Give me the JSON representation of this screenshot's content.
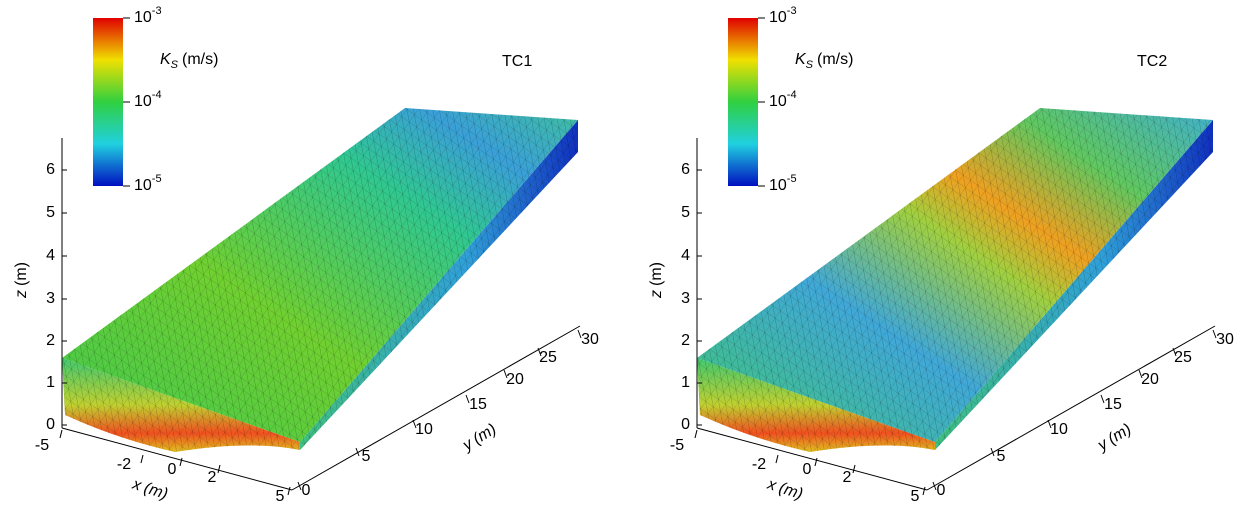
{
  "panels": [
    {
      "title": "TC1",
      "colorbar": {
        "label": {
          "symbol": "K",
          "subscript": "S",
          "unit": "(m/s)"
        },
        "ticks": [
          {
            "base": "10",
            "exponent": "-3"
          },
          {
            "base": "10",
            "exponent": "-4"
          },
          {
            "base": "10",
            "exponent": "-5"
          }
        ]
      },
      "z_axis": {
        "label": {
          "symbol": "z",
          "unit": "(m)"
        },
        "ticks": [
          "0",
          "1",
          "2",
          "3",
          "4",
          "5",
          "6"
        ]
      },
      "x_axis": {
        "label": {
          "symbol": "x",
          "unit": "(m)"
        },
        "ticks": [
          "-5",
          "-2",
          "0",
          "2",
          "5"
        ]
      },
      "y_axis": {
        "label": {
          "symbol": "y",
          "unit": "(m)"
        },
        "ticks": [
          "0",
          "5",
          "10",
          "15",
          "20",
          "25",
          "30"
        ]
      }
    },
    {
      "title": "TC2",
      "colorbar": {
        "label": {
          "symbol": "K",
          "subscript": "S",
          "unit": "(m/s)"
        },
        "ticks": [
          {
            "base": "10",
            "exponent": "-3"
          },
          {
            "base": "10",
            "exponent": "-4"
          },
          {
            "base": "10",
            "exponent": "-5"
          }
        ]
      },
      "z_axis": {
        "label": {
          "symbol": "z",
          "unit": "(m)"
        },
        "ticks": [
          "0",
          "1",
          "2",
          "3",
          "4",
          "5",
          "6"
        ]
      },
      "x_axis": {
        "label": {
          "symbol": "x",
          "unit": "(m)"
        },
        "ticks": [
          "-5",
          "-2",
          "0",
          "2",
          "5"
        ]
      },
      "y_axis": {
        "label": {
          "symbol": "y",
          "unit": "(m)"
        },
        "ticks": [
          "0",
          "5",
          "10",
          "15",
          "20",
          "25",
          "30"
        ]
      }
    }
  ]
}
